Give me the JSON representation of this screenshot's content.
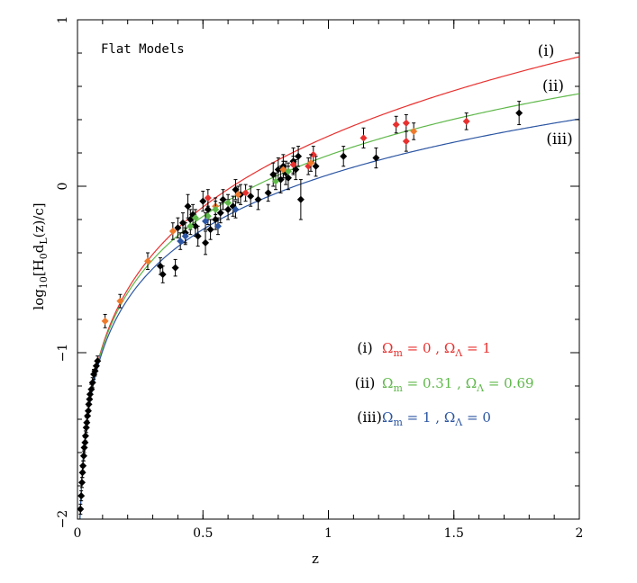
{
  "chart_data": {
    "type": "scatter",
    "title": "",
    "annotation": "Flat Models",
    "xlabel": "z",
    "ylabel": "log10[H0 dL(z)/c]",
    "xlim": [
      0,
      2
    ],
    "ylim": [
      -2,
      1
    ],
    "x_ticks": [
      0,
      0.5,
      1,
      1.5,
      2
    ],
    "x_tick_labels": [
      "0",
      "0.5",
      "1",
      "1.5",
      "2"
    ],
    "y_ticks": [
      -2,
      -1,
      0,
      1
    ],
    "y_tick_labels": [
      "−2",
      "−1",
      "0",
      "1"
    ],
    "models": [
      {
        "id": "i",
        "label": "(i)",
        "omega_m": 0,
        "omega_lambda": 1,
        "color": "#e8312f",
        "legend_text_a": "Ωm = 0",
        "legend_text_b": "ΩΛ = 1",
        "om_value": "0",
        "ol_value": "1"
      },
      {
        "id": "ii",
        "label": "(ii)",
        "omega_m": 0.31,
        "omega_lambda": 0.69,
        "color": "#5fb84a",
        "om_value": "0.31",
        "ol_value": "0.69"
      },
      {
        "id": "iii",
        "label": "(iii)",
        "omega_m": 1,
        "omega_lambda": 0,
        "color": "#2c56a3",
        "om_value": "1",
        "ol_value": "0"
      }
    ],
    "legend_symbols": {
      "omega": "Ω",
      "sub_m": "m",
      "sub_lambda": "Λ",
      "equals": "=",
      "comma": ","
    },
    "series": [
      {
        "name": "black",
        "color": "#000000",
        "points": [
          [
            0.012,
            -1.94,
            0.03
          ],
          [
            0.015,
            -1.86,
            0.03
          ],
          [
            0.018,
            -1.78,
            0.03
          ],
          [
            0.02,
            -1.72,
            0.03
          ],
          [
            0.022,
            -1.68,
            0.03
          ],
          [
            0.025,
            -1.62,
            0.03
          ],
          [
            0.027,
            -1.57,
            0.03
          ],
          [
            0.03,
            -1.54,
            0.03
          ],
          [
            0.032,
            -1.5,
            0.03
          ],
          [
            0.035,
            -1.45,
            0.03
          ],
          [
            0.037,
            -1.42,
            0.03
          ],
          [
            0.04,
            -1.38,
            0.03
          ],
          [
            0.043,
            -1.35,
            0.03
          ],
          [
            0.045,
            -1.31,
            0.03
          ],
          [
            0.048,
            -1.28,
            0.03
          ],
          [
            0.05,
            -1.25,
            0.03
          ],
          [
            0.055,
            -1.22,
            0.03
          ],
          [
            0.06,
            -1.18,
            0.03
          ],
          [
            0.065,
            -1.13,
            0.03
          ],
          [
            0.07,
            -1.11,
            0.03
          ],
          [
            0.075,
            -1.08,
            0.03
          ],
          [
            0.08,
            -1.05,
            0.03
          ],
          [
            0.33,
            -0.48,
            0.05
          ],
          [
            0.34,
            -0.53,
            0.05
          ],
          [
            0.39,
            -0.49,
            0.05
          ],
          [
            0.4,
            -0.25,
            0.06
          ],
          [
            0.42,
            -0.22,
            0.06
          ],
          [
            0.43,
            -0.28,
            0.06
          ],
          [
            0.44,
            -0.12,
            0.07
          ],
          [
            0.45,
            -0.2,
            0.06
          ],
          [
            0.46,
            -0.17,
            0.06
          ],
          [
            0.47,
            -0.24,
            0.06
          ],
          [
            0.48,
            -0.3,
            0.06
          ],
          [
            0.5,
            -0.09,
            0.06
          ],
          [
            0.51,
            -0.34,
            0.07
          ],
          [
            0.52,
            -0.14,
            0.06
          ],
          [
            0.53,
            -0.26,
            0.06
          ],
          [
            0.55,
            -0.2,
            0.06
          ],
          [
            0.57,
            -0.16,
            0.06
          ],
          [
            0.58,
            -0.08,
            0.06
          ],
          [
            0.6,
            -0.14,
            0.06
          ],
          [
            0.62,
            -0.12,
            0.06
          ],
          [
            0.63,
            -0.02,
            0.06
          ],
          [
            0.65,
            -0.05,
            0.06
          ],
          [
            0.69,
            -0.06,
            0.06
          ],
          [
            0.72,
            -0.08,
            0.06
          ],
          [
            0.76,
            -0.04,
            0.05
          ],
          [
            0.78,
            0.07,
            0.07
          ],
          [
            0.8,
            0.1,
            0.07
          ],
          [
            0.81,
            0.04,
            0.08
          ],
          [
            0.82,
            0.12,
            0.07
          ],
          [
            0.83,
            0.08,
            0.07
          ],
          [
            0.84,
            0.05,
            0.07
          ],
          [
            0.86,
            0.15,
            0.08
          ],
          [
            0.87,
            0.1,
            0.06
          ],
          [
            0.88,
            0.18,
            0.06
          ],
          [
            0.89,
            -0.08,
            0.12
          ],
          [
            0.95,
            0.12,
            0.06
          ],
          [
            1.06,
            0.18,
            0.06
          ],
          [
            1.19,
            0.17,
            0.06
          ],
          [
            1.76,
            0.44,
            0.07
          ]
        ]
      },
      {
        "name": "red",
        "color": "#e8312f",
        "points": [
          [
            0.52,
            -0.07,
            0.05
          ],
          [
            0.67,
            -0.04,
            0.05
          ],
          [
            0.86,
            0.13,
            0.05
          ],
          [
            0.92,
            0.12,
            0.05
          ],
          [
            0.94,
            0.19,
            0.05
          ],
          [
            1.14,
            0.29,
            0.06
          ],
          [
            1.27,
            0.37,
            0.05
          ],
          [
            1.31,
            0.38,
            0.05
          ],
          [
            1.31,
            0.27,
            0.06
          ],
          [
            1.55,
            0.39,
            0.05
          ]
        ]
      },
      {
        "name": "orange",
        "color": "#ef7a2c",
        "points": [
          [
            0.11,
            -0.81,
            0.04
          ],
          [
            0.17,
            -0.69,
            0.04
          ],
          [
            0.28,
            -0.45,
            0.05
          ],
          [
            0.38,
            -0.27,
            0.05
          ],
          [
            0.55,
            -0.12,
            0.05
          ],
          [
            0.64,
            -0.05,
            0.05
          ],
          [
            0.82,
            0.1,
            0.05
          ],
          [
            0.93,
            0.14,
            0.05
          ],
          [
            1.34,
            0.33,
            0.05
          ]
        ]
      },
      {
        "name": "green",
        "color": "#5fb84a",
        "points": [
          [
            0.45,
            -0.24,
            0.05
          ],
          [
            0.47,
            -0.19,
            0.05
          ],
          [
            0.52,
            -0.18,
            0.05
          ],
          [
            0.55,
            -0.14,
            0.05
          ],
          [
            0.6,
            -0.1,
            0.05
          ],
          [
            0.79,
            0.03,
            0.05
          ],
          [
            0.84,
            0.09,
            0.05
          ]
        ]
      },
      {
        "name": "blue",
        "color": "#2c56a3",
        "points": [
          [
            0.41,
            -0.33,
            0.05
          ],
          [
            0.43,
            -0.3,
            0.05
          ],
          [
            0.51,
            -0.21,
            0.05
          ],
          [
            0.56,
            -0.24,
            0.05
          ],
          [
            0.63,
            -0.14,
            0.05
          ]
        ]
      }
    ]
  }
}
